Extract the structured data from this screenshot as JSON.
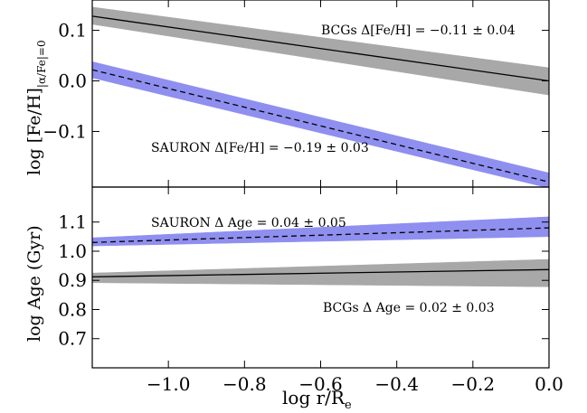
{
  "chart_data": [
    {
      "type": "line",
      "panel": "top",
      "ylabel": "log [Fe/H]",
      "ylabel_subscript": "|α/Fe|=0",
      "xlim": [
        -1.2,
        0.0
      ],
      "ylim": [
        -0.21,
        0.16
      ],
      "yticks": [
        0.1,
        0.0,
        -0.1
      ],
      "ytick_labels": [
        "0.1",
        "0.0",
        "−0.1"
      ],
      "series": [
        {
          "name": "BCGs",
          "line_style": "solid",
          "color": "#000000",
          "band_color": "#a8a8a8",
          "x": [
            -1.2,
            0.0
          ],
          "y": [
            0.128,
            0.0
          ],
          "band_upper": [
            0.146,
            0.026
          ],
          "band_lower": [
            0.112,
            -0.028
          ]
        },
        {
          "name": "SAURON",
          "line_style": "dashed",
          "color": "#000000",
          "band_color": "#8f8ff0",
          "x": [
            -1.2,
            0.0
          ],
          "y": [
            0.022,
            -0.2
          ],
          "band_upper": [
            0.038,
            -0.182
          ],
          "band_lower": [
            0.006,
            -0.212
          ]
        }
      ],
      "annotations": [
        {
          "id": "bcg",
          "text": "BCGs Δ[Fe/H] = −0.11 ± 0.04"
        },
        {
          "id": "sauron",
          "text": "SAURON Δ[Fe/H] = −0.19 ± 0.03"
        }
      ]
    },
    {
      "type": "line",
      "panel": "bottom",
      "ylabel": "log Age (Gyr)",
      "xlabel": "log r/R",
      "xlabel_subscript": "e",
      "xlim": [
        -1.2,
        0.0
      ],
      "ylim": [
        0.6,
        1.22
      ],
      "yticks": [
        1.1,
        1.0,
        0.9,
        0.8,
        0.7
      ],
      "ytick_labels": [
        "1.1",
        "1.0",
        "0.9",
        "0.8",
        "0.7"
      ],
      "xticks": [
        -1.0,
        -0.8,
        -0.6,
        -0.4,
        -0.2,
        0.0
      ],
      "xtick_labels": [
        "−1.0",
        "−0.8",
        "−0.6",
        "−0.4",
        "−0.2",
        "0.0"
      ],
      "series": [
        {
          "name": "SAURON",
          "line_style": "dashed",
          "color": "#000000",
          "band_color": "#8f8ff0",
          "x": [
            -1.2,
            0.0
          ],
          "y": [
            1.03,
            1.08
          ],
          "band_upper": [
            1.046,
            1.118
          ],
          "band_lower": [
            1.018,
            1.05
          ]
        },
        {
          "name": "BCGs",
          "line_style": "solid",
          "color": "#000000",
          "band_color": "#a8a8a8",
          "x": [
            -1.2,
            0.0
          ],
          "y": [
            0.912,
            0.937
          ],
          "band_upper": [
            0.925,
            0.972
          ],
          "band_lower": [
            0.892,
            0.878
          ]
        }
      ],
      "annotations": [
        {
          "id": "sauron",
          "text": "SAURON Δ Age = 0.04 ± 0.05"
        },
        {
          "id": "bcg",
          "text": "BCGs Δ Age = 0.02 ± 0.03"
        }
      ]
    }
  ]
}
